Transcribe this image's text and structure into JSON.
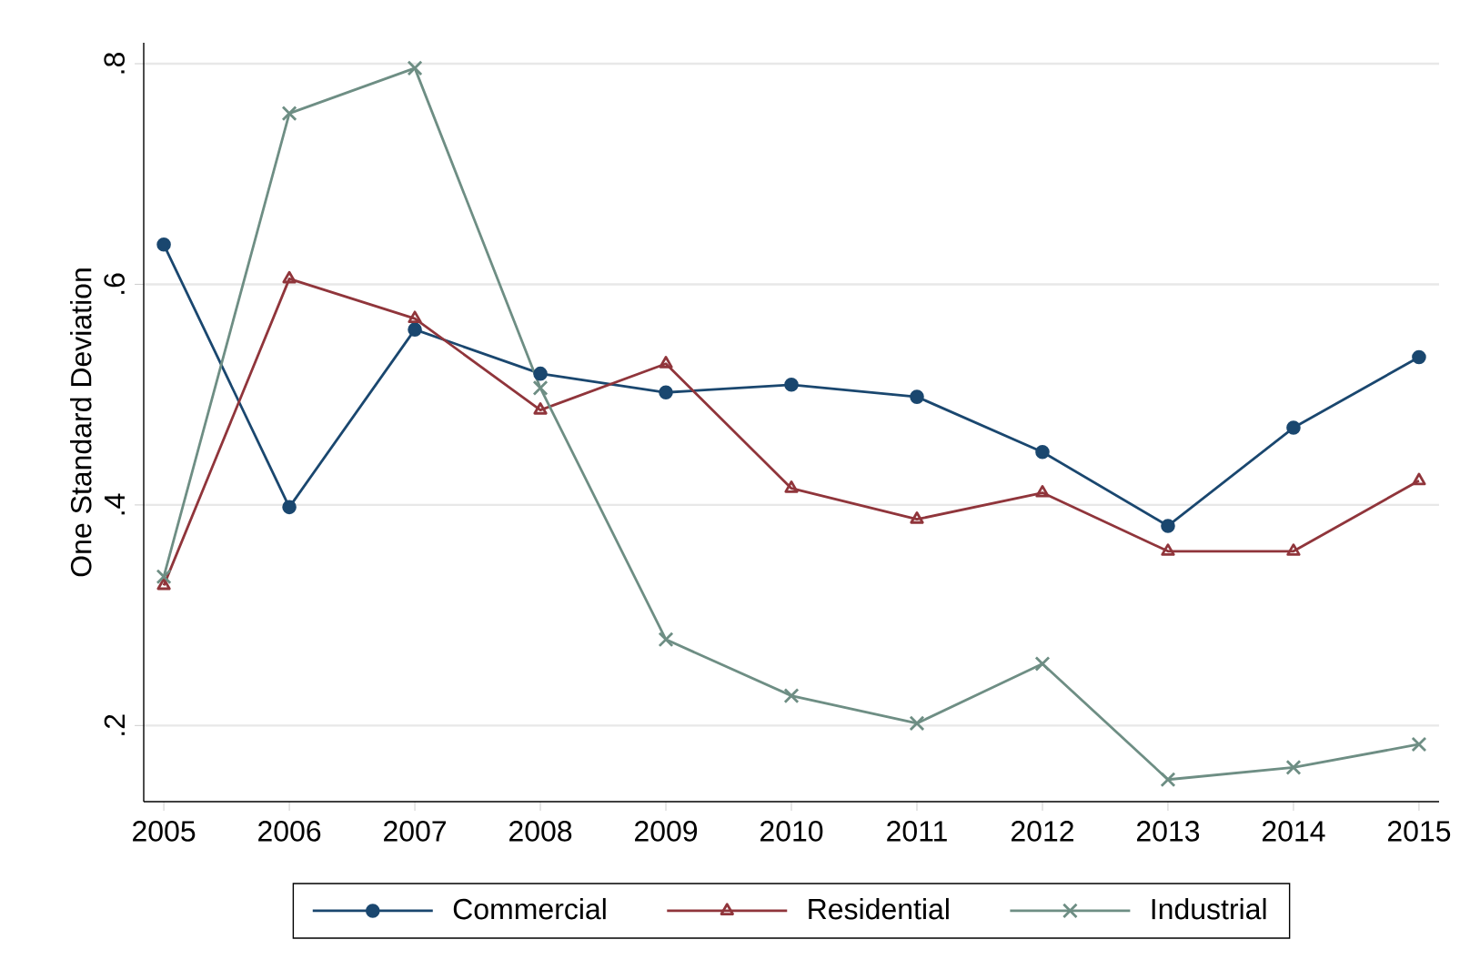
{
  "chart_data": {
    "type": "line",
    "ylabel": "One Standard Deviation",
    "x": [
      2005,
      2006,
      2007,
      2008,
      2009,
      2010,
      2011,
      2012,
      2013,
      2014,
      2015
    ],
    "xlim": [
      2004.84,
      2015.16
    ],
    "xticks": [
      2005,
      2006,
      2007,
      2008,
      2009,
      2010,
      2011,
      2012,
      2013,
      2014,
      2015
    ],
    "ylim": [
      0.131,
      0.819
    ],
    "yticks": [
      {
        "value": 0.2,
        "label": ".2"
      },
      {
        "value": 0.4,
        "label": ".4"
      },
      {
        "value": 0.6,
        "label": ".6"
      },
      {
        "value": 0.8,
        "label": ".8"
      }
    ],
    "grid": "y",
    "legend": "bottom",
    "line_style": "solid",
    "series": [
      {
        "name": "Commercial",
        "color": "#1a476f",
        "marker": "circle",
        "values": [
          0.636,
          0.398,
          0.559,
          0.519,
          0.502,
          0.509,
          0.498,
          0.448,
          0.381,
          0.47,
          0.534
        ]
      },
      {
        "name": "Residential",
        "color": "#90353b",
        "marker": "triangle",
        "values": [
          0.327,
          0.605,
          0.569,
          0.486,
          0.528,
          0.415,
          0.387,
          0.411,
          0.358,
          0.358,
          0.422
        ]
      },
      {
        "name": "Industrial",
        "color": "#6e8e84",
        "marker": "cross",
        "values": [
          0.335,
          0.755,
          0.796,
          0.506,
          0.278,
          0.227,
          0.202,
          0.256,
          0.151,
          0.162,
          0.183
        ]
      }
    ]
  }
}
